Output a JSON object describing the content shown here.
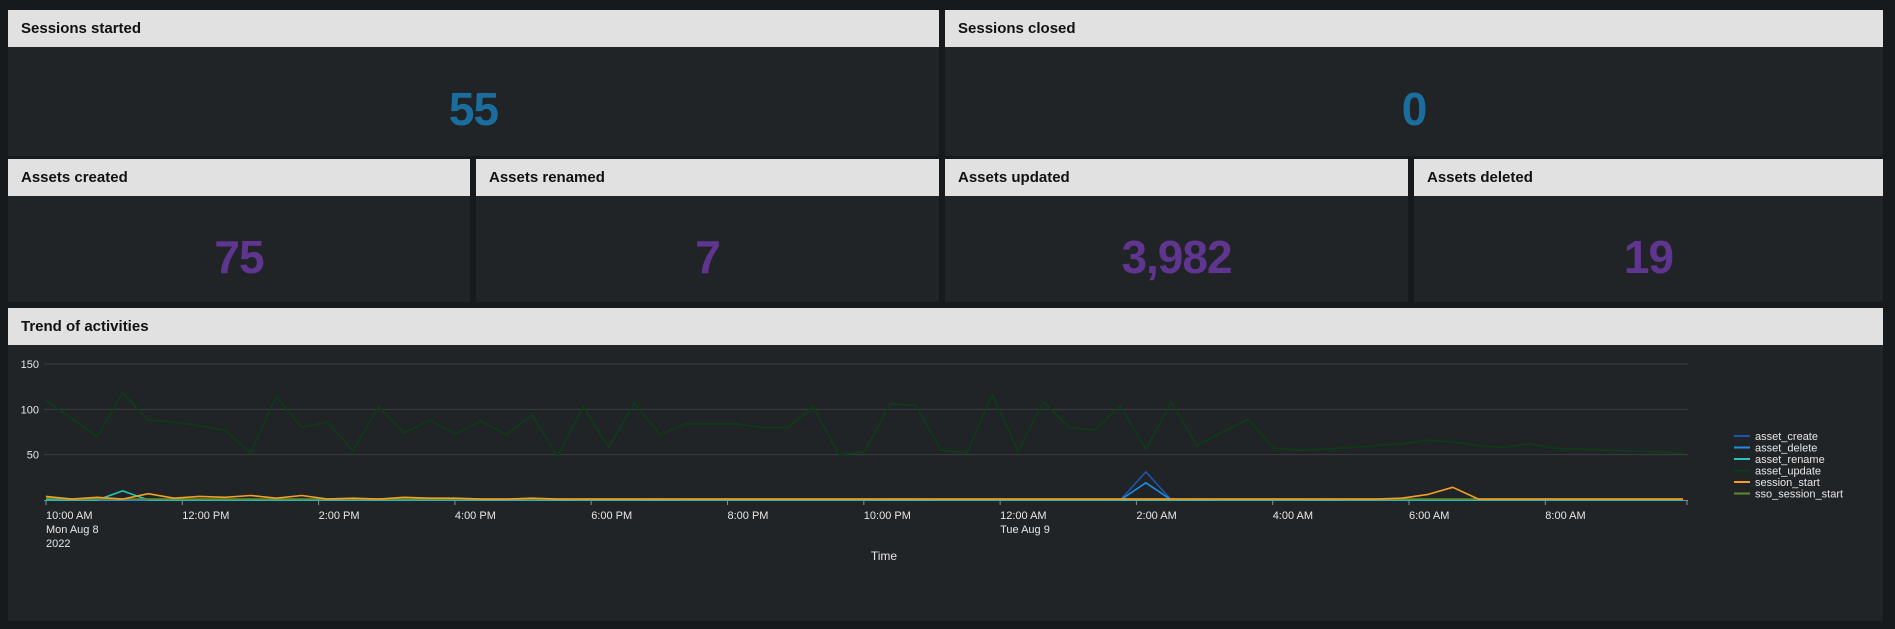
{
  "colors": {
    "background": "#171a1d",
    "panel_bg": "#212427",
    "header_bg": "#e1e1e1",
    "sessions_value": "#1a6d9c",
    "assets_value": "#5f3590",
    "axis_text": "#e6e6e6",
    "gridline": "#3b3e42"
  },
  "panels": {
    "sessions_started": {
      "title": "Sessions started",
      "value": "55"
    },
    "sessions_closed": {
      "title": "Sessions closed",
      "value": "0"
    },
    "assets_created": {
      "title": "Assets created",
      "value": "75"
    },
    "assets_renamed": {
      "title": "Assets renamed",
      "value": "7"
    },
    "assets_updated": {
      "title": "Assets updated",
      "value": "3,982"
    },
    "assets_deleted": {
      "title": "Assets deleted",
      "value": "19"
    },
    "trend": {
      "title": "Trend of activities"
    }
  },
  "chart_data": {
    "type": "line",
    "title": "Trend of activities",
    "xlabel": "Time",
    "ylabel": "",
    "ylim": [
      0,
      150
    ],
    "y_ticks": [
      "50",
      "100",
      "150"
    ],
    "grid": true,
    "legend_position": "right",
    "x_ticks": [
      {
        "label": "10:00 AM",
        "sub1": "Mon Aug 8",
        "sub2": "2022"
      },
      {
        "label": "12:00 PM",
        "sub1": "",
        "sub2": ""
      },
      {
        "label": "2:00 PM",
        "sub1": "",
        "sub2": ""
      },
      {
        "label": "4:00 PM",
        "sub1": "",
        "sub2": ""
      },
      {
        "label": "6:00 PM",
        "sub1": "",
        "sub2": ""
      },
      {
        "label": "8:00 PM",
        "sub1": "",
        "sub2": ""
      },
      {
        "label": "10:00 PM",
        "sub1": "",
        "sub2": ""
      },
      {
        "label": "12:00 AM",
        "sub1": "Tue Aug 9",
        "sub2": ""
      },
      {
        "label": "2:00 AM",
        "sub1": "",
        "sub2": ""
      },
      {
        "label": "4:00 AM",
        "sub1": "",
        "sub2": ""
      },
      {
        "label": "6:00 AM",
        "sub1": "",
        "sub2": ""
      },
      {
        "label": "8:00 AM",
        "sub1": "",
        "sub2": ""
      }
    ],
    "series": [
      {
        "name": "asset_create",
        "color": "#1f55a8",
        "values": [
          1,
          0,
          2,
          0,
          0,
          0,
          0,
          0,
          0,
          0,
          0,
          0,
          0,
          0,
          0,
          0,
          0,
          0,
          0,
          0,
          1,
          0,
          0,
          0,
          1,
          0,
          0,
          0,
          0,
          0,
          0,
          0,
          0,
          1,
          1,
          0,
          0,
          0,
          0,
          0,
          0,
          0,
          0,
          31,
          0,
          1,
          0,
          0,
          0,
          0,
          1,
          0,
          0,
          0,
          0,
          0,
          0,
          0,
          0,
          0,
          0,
          0,
          0,
          0,
          0
        ]
      },
      {
        "name": "asset_delete",
        "color": "#1a8fe6",
        "values": [
          0,
          0,
          0,
          0,
          0,
          0,
          0,
          0,
          0,
          0,
          0,
          0,
          0,
          0,
          0,
          0,
          0,
          0,
          0,
          0,
          0,
          0,
          0,
          0,
          0,
          0,
          0,
          0,
          0,
          0,
          0,
          0,
          0,
          0,
          0,
          0,
          0,
          0,
          0,
          0,
          0,
          0,
          0,
          19,
          0,
          0,
          0,
          0,
          0,
          0,
          0,
          0,
          0,
          0,
          0,
          0,
          0,
          0,
          0,
          0,
          0,
          0,
          0,
          0,
          0
        ]
      },
      {
        "name": "asset_rename",
        "color": "#26c6b9",
        "values": [
          0,
          0,
          0,
          10,
          0,
          0,
          0,
          0,
          0,
          0,
          0,
          0,
          0,
          0,
          0,
          0,
          0,
          0,
          0,
          0,
          0,
          0,
          0,
          0,
          0,
          0,
          0,
          0,
          0,
          0,
          0,
          0,
          0,
          0,
          0,
          0,
          0,
          0,
          0,
          0,
          0,
          0,
          0,
          0,
          0,
          0,
          0,
          0,
          0,
          0,
          0,
          0,
          0,
          0,
          0,
          0,
          0,
          0,
          0,
          0,
          0,
          0,
          0,
          0,
          0
        ]
      },
      {
        "name": "asset_update",
        "color": "#0c3d17",
        "values": [
          110,
          90,
          70,
          118,
          88,
          86,
          82,
          77,
          52,
          114,
          80,
          86,
          54,
          103,
          74,
          88,
          73,
          87,
          72,
          94,
          48,
          103,
          58,
          107,
          72,
          84,
          84,
          84,
          80,
          80,
          103,
          50,
          53,
          106,
          104,
          55,
          52,
          116,
          54,
          108,
          80,
          77,
          104,
          56,
          108,
          60,
          75,
          89,
          57,
          55,
          56,
          58,
          60,
          62,
          66,
          64,
          60,
          58,
          62,
          57,
          56,
          55,
          54,
          53,
          52
        ]
      },
      {
        "name": "session_start",
        "color": "#f59d25",
        "values": [
          4,
          1,
          3,
          1,
          7,
          2,
          4,
          3,
          5,
          2,
          5,
          1,
          2,
          1,
          3,
          2,
          2,
          1,
          1,
          2,
          1,
          1,
          1,
          1,
          1,
          1,
          1,
          1,
          1,
          1,
          1,
          1,
          1,
          1,
          1,
          1,
          1,
          1,
          1,
          1,
          1,
          1,
          1,
          1,
          1,
          1,
          1,
          1,
          1,
          1,
          1,
          1,
          1,
          2,
          6,
          14,
          1,
          1,
          1,
          1,
          1,
          1,
          1,
          1,
          1
        ]
      },
      {
        "name": "sso_session_start",
        "color": "#5c8a2d",
        "values": [
          2,
          1,
          1,
          1,
          1,
          1,
          1,
          1,
          1,
          1,
          1,
          1,
          1,
          1,
          1,
          1,
          1,
          1,
          1,
          1,
          1,
          1,
          1,
          1,
          1,
          1,
          1,
          1,
          1,
          1,
          1,
          1,
          1,
          1,
          1,
          1,
          1,
          1,
          1,
          1,
          1,
          1,
          1,
          1,
          1,
          1,
          1,
          1,
          1,
          1,
          1,
          1,
          1,
          1,
          1,
          1,
          1,
          1,
          1,
          1,
          1,
          1,
          1,
          1,
          1
        ]
      }
    ]
  }
}
